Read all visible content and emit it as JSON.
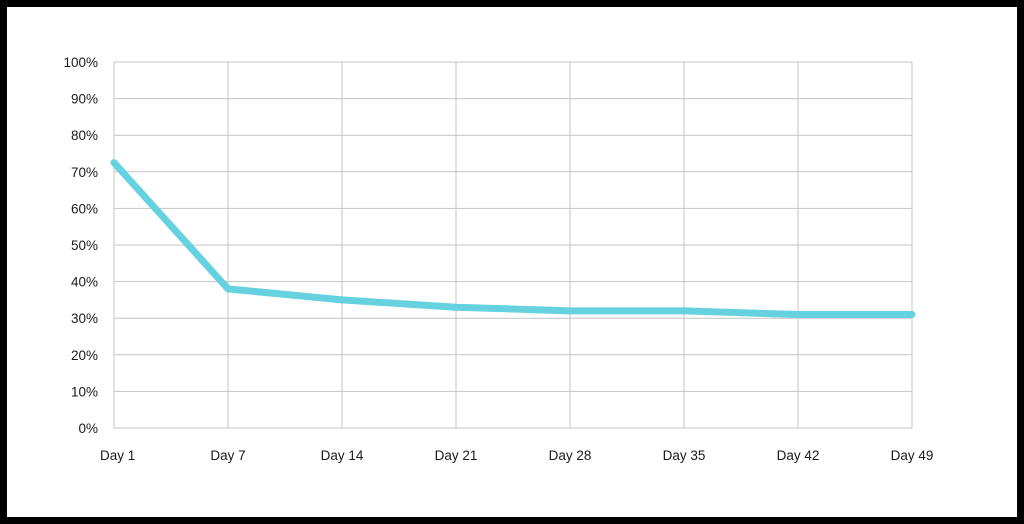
{
  "chart_data": {
    "type": "line",
    "title": "",
    "xlabel": "",
    "ylabel": "",
    "categories": [
      "Day 1",
      "Day 7",
      "Day 14",
      "Day 21",
      "Day 28",
      "Day 35",
      "Day 42",
      "Day 49"
    ],
    "series": [
      {
        "values": [
          72.5,
          38,
          35,
          33,
          32,
          32,
          31,
          31
        ],
        "color": "#66d2e0"
      }
    ],
    "ylim": [
      0,
      100
    ],
    "yticks": [
      0,
      10,
      20,
      30,
      40,
      50,
      60,
      70,
      80,
      90,
      100
    ],
    "ytick_labels": [
      "0%",
      "10%",
      "20%",
      "30%",
      "40%",
      "50%",
      "60%",
      "70%",
      "80%",
      "90%",
      "100%"
    ],
    "grid": true,
    "legend": "none"
  }
}
